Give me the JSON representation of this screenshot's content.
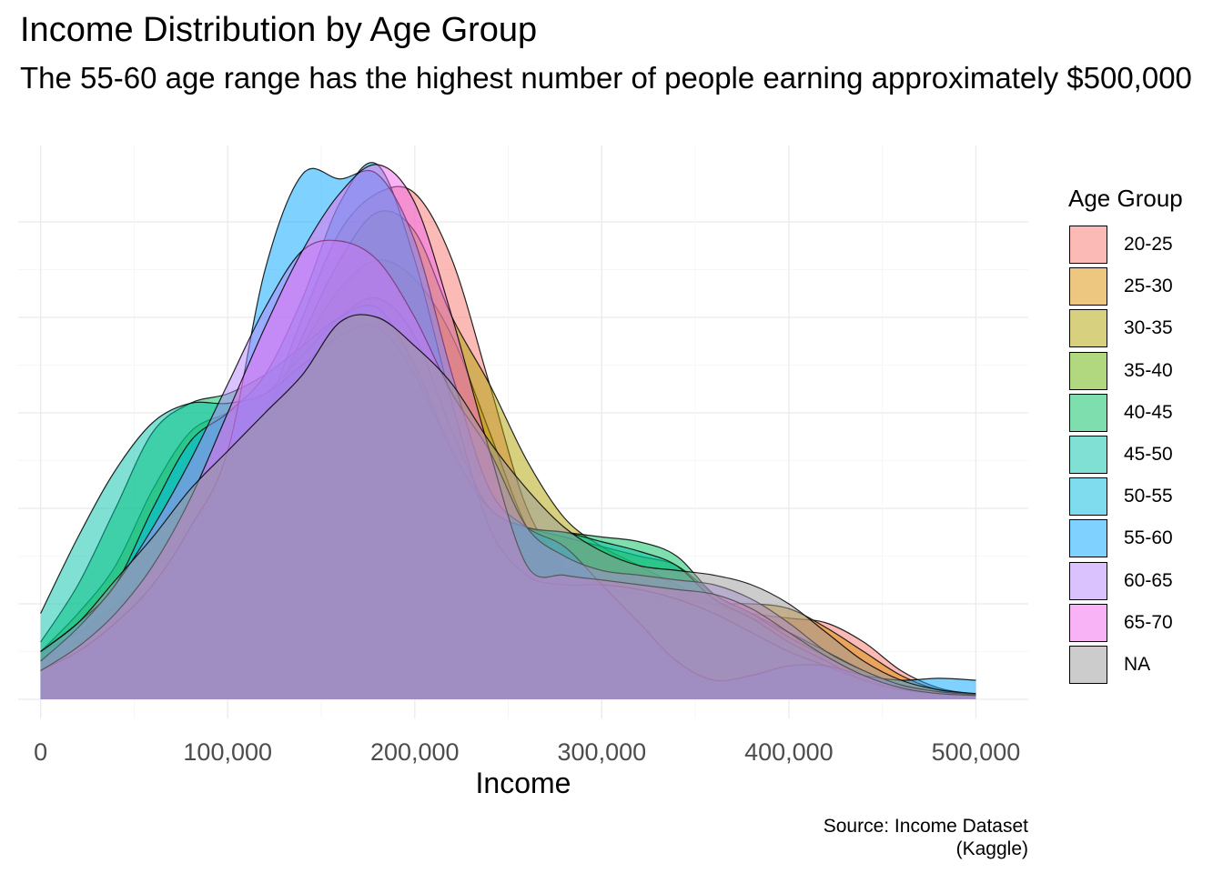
{
  "chart_data": {
    "type": "area",
    "title": "Income Distribution by Age Group",
    "subtitle": "The 55-60 age range has the highest number of people earning approximately $500,000",
    "xlabel": "Income",
    "ylabel": "",
    "caption_line1": "Source: Income Dataset",
    "caption_line2": "(Kaggle)",
    "legend_title": "Age Group",
    "legend_position": "right",
    "xlim": [
      -12000,
      528000
    ],
    "ylim": [
      -2e-07,
      5.8e-06
    ],
    "x_ticks": [
      0,
      100000,
      200000,
      300000,
      400000,
      500000
    ],
    "x_tick_labels": [
      "0",
      "100,000",
      "200,000",
      "300,000",
      "400,000",
      "500,000"
    ],
    "y_ticks": [
      0,
      1e-06,
      2e-06,
      3e-06,
      4e-06,
      5e-06
    ],
    "y_tick_labels": [
      "",
      "",
      "",
      "",
      "",
      ""
    ],
    "grid": true,
    "x": [
      0,
      20000,
      40000,
      60000,
      80000,
      100000,
      120000,
      140000,
      160000,
      180000,
      200000,
      220000,
      240000,
      260000,
      280000,
      300000,
      320000,
      340000,
      360000,
      380000,
      400000,
      420000,
      440000,
      460000,
      480000,
      500000
    ],
    "series": [
      {
        "name": "20-25",
        "color": "#F8766D",
        "values": [
          5e-07,
          7e-07,
          9.8e-07,
          1.35e-06,
          1.8e-06,
          2.3e-06,
          3e-06,
          4e-06,
          4.9e-06,
          5.3e-06,
          5.3e-06,
          4.6e-06,
          3.3e-06,
          2e-06,
          1.4e-06,
          1.2e-06,
          1.1e-06,
          1.05e-06,
          1e-06,
          9e-07,
          8.5e-07,
          8e-07,
          6e-07,
          3e-07,
          1.2e-07,
          5e-08
        ]
      },
      {
        "name": "25-30",
        "color": "#DB8E00",
        "values": [
          4e-07,
          6e-07,
          8.5e-07,
          1.2e-06,
          1.7e-06,
          2.3e-06,
          3e-06,
          3.7e-06,
          4.3e-06,
          4.6e-06,
          4.4e-06,
          3.8e-06,
          2.8e-06,
          1.8e-06,
          1.3e-06,
          1.15e-06,
          1.1e-06,
          1.05e-06,
          1e-06,
          1e-06,
          9.5e-07,
          7.5e-07,
          5e-07,
          2.5e-07,
          1e-07,
          5e-08
        ]
      },
      {
        "name": "30-35",
        "color": "#AEA200",
        "values": [
          3e-07,
          5e-07,
          7.5e-07,
          1.05e-06,
          1.5e-06,
          2.1e-06,
          2.9e-06,
          3.8e-06,
          4.6e-06,
          5.1e-06,
          4.9e-06,
          4e-06,
          3.3e-06,
          2.5e-06,
          1.9e-06,
          1.6e-06,
          1.4e-06,
          1.2e-06,
          1e-06,
          8.5e-07,
          7e-07,
          5e-07,
          3e-07,
          1.5e-07,
          8e-08,
          5e-08
        ]
      },
      {
        "name": "35-40",
        "color": "#64B200",
        "values": [
          5e-07,
          9e-07,
          1.4e-06,
          2.2e-06,
          2.8e-06,
          3e-06,
          3.2e-06,
          3.6e-06,
          4e-06,
          4.2e-06,
          3.8e-06,
          2.8e-06,
          2e-06,
          1.8e-06,
          1.7e-06,
          1.6e-06,
          1.5e-06,
          1.4e-06,
          1.1e-06,
          9e-07,
          7e-07,
          5e-07,
          3e-07,
          1.5e-07,
          8e-08,
          5e-08
        ]
      },
      {
        "name": "40-45",
        "color": "#00BD5C",
        "values": [
          6e-07,
          1.2e-06,
          2e-06,
          2.8e-06,
          3.1e-06,
          3.2e-06,
          3.4e-06,
          3.7e-06,
          4e-06,
          4.1e-06,
          3.5e-06,
          2.6e-06,
          2e-06,
          1.8e-06,
          1.75e-06,
          1.7e-06,
          1.65e-06,
          1.5e-06,
          1.1e-06,
          9e-07,
          6.5e-07,
          4.5e-07,
          2.5e-07,
          1.2e-07,
          6e-08,
          4e-08
        ]
      },
      {
        "name": "45-50",
        "color": "#00C1A7",
        "values": [
          9e-07,
          1.7e-06,
          2.4e-06,
          2.9e-06,
          3.1e-06,
          3.1e-06,
          3.2e-06,
          3.5e-06,
          3.8e-06,
          3.9e-06,
          3.4e-06,
          2.6e-06,
          2e-06,
          1.8e-06,
          1.75e-06,
          1.65e-06,
          1.55e-06,
          1.4e-06,
          1.05e-06,
          8.5e-07,
          6e-07,
          4e-07,
          2e-07,
          1e-07,
          6e-08,
          4e-08
        ]
      },
      {
        "name": "50-55",
        "color": "#00BADE",
        "values": [
          5e-07,
          8e-07,
          1.2e-06,
          2e-06,
          2.7e-06,
          3e-06,
          3.4e-06,
          4.2e-06,
          5.2e-06,
          5.6e-06,
          4.6e-06,
          3.1e-06,
          1.8e-06,
          1.3e-06,
          1.2e-06,
          1.2e-06,
          1.15e-06,
          1.05e-06,
          9e-07,
          7e-07,
          5e-07,
          3.5e-07,
          2e-07,
          1e-07,
          6e-08,
          4e-08
        ]
      },
      {
        "name": "55-60",
        "color": "#00A6FF",
        "values": [
          3e-07,
          5e-07,
          8e-07,
          1.2e-06,
          1.8e-06,
          2.6e-06,
          4.5e-06,
          5.5e-06,
          5.45e-06,
          5.5e-06,
          4.8e-06,
          3.4e-06,
          2.2e-06,
          1.8e-06,
          1.6e-06,
          1.2e-06,
          8e-07,
          4e-07,
          2e-07,
          2.5e-07,
          3.5e-07,
          3.5e-07,
          2.5e-07,
          2e-07,
          2.2e-07,
          2e-07
        ]
      },
      {
        "name": "60-65",
        "color": "#B385FF",
        "values": [
          4e-07,
          7.5e-07,
          1.2e-06,
          1.8e-06,
          2.5e-06,
          3.3e-06,
          4.1e-06,
          4.7e-06,
          4.8e-06,
          4.6e-06,
          4e-06,
          3.2e-06,
          2.6e-06,
          1.8e-06,
          1.5e-06,
          1.35e-06,
          1.3e-06,
          1.25e-06,
          1.2e-06,
          1.05e-06,
          8e-07,
          5e-07,
          3e-07,
          1.5e-07,
          8e-08,
          5e-08
        ]
      },
      {
        "name": "65-70",
        "color": "#EF67EB",
        "values": [
          3e-07,
          5.5e-07,
          9e-07,
          1.4e-06,
          2.1e-06,
          3e-06,
          3.9e-06,
          4.7e-06,
          5.3e-06,
          5.6e-06,
          5.2e-06,
          4e-06,
          2.6e-06,
          1.4e-06,
          1.3e-06,
          1.25e-06,
          1.2e-06,
          1.15e-06,
          1.1e-06,
          9.5e-07,
          7e-07,
          4.5e-07,
          2.5e-07,
          1.2e-07,
          6e-08,
          4e-08
        ]
      },
      {
        "name": "NA",
        "color": "#999999",
        "values": [
          5e-07,
          8e-07,
          1.25e-06,
          1.7e-06,
          2.2e-06,
          2.6e-06,
          3e-06,
          3.4e-06,
          3.95e-06,
          4e-06,
          3.7e-06,
          3.3e-06,
          2.7e-06,
          2.2e-06,
          1.8e-06,
          1.55e-06,
          1.4e-06,
          1.35e-06,
          1.3e-06,
          1.2e-06,
          1e-06,
          7e-07,
          4e-07,
          2e-07,
          1e-07,
          6e-08
        ]
      }
    ]
  }
}
